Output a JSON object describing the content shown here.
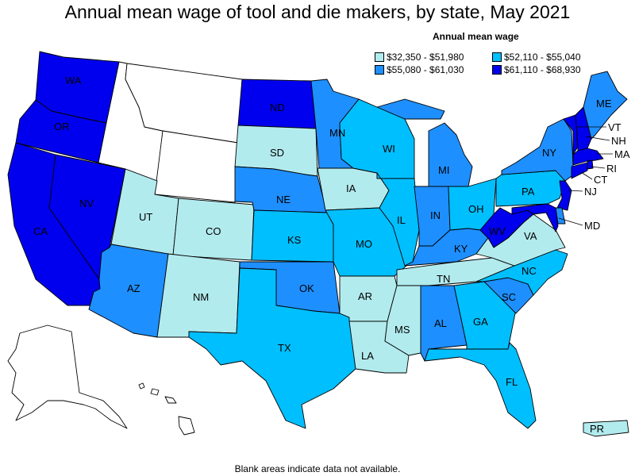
{
  "title": "Annual mean wage of tool and die makers, by state, May 2021",
  "legend": {
    "title": "Annual mean wage",
    "bins": [
      {
        "label": "$32,350 - $51,980",
        "color": "#b2ebee"
      },
      {
        "label": "$52,110 - $55,040",
        "color": "#00bfff"
      },
      {
        "label": "$55,080 - $61,030",
        "color": "#1e8fff"
      },
      {
        "label": "$61,110 - $68,930",
        "color": "#0000ee"
      }
    ]
  },
  "colors": {
    "no_data": "#ffffff",
    "border": "#000000"
  },
  "footnote": "Blank areas indicate data not available.",
  "states": {
    "WA": {
      "label": "WA",
      "bin": 3
    },
    "OR": {
      "label": "OR",
      "bin": 3
    },
    "CA": {
      "label": "CA",
      "bin": 3
    },
    "NV": {
      "label": "NV",
      "bin": 3
    },
    "ID": {
      "label": "",
      "bin": null
    },
    "MT": {
      "label": "",
      "bin": null
    },
    "WY": {
      "label": "",
      "bin": null
    },
    "UT": {
      "label": "UT",
      "bin": 0
    },
    "CO": {
      "label": "CO",
      "bin": 0
    },
    "AZ": {
      "label": "AZ",
      "bin": 2
    },
    "NM": {
      "label": "NM",
      "bin": 0
    },
    "ND": {
      "label": "ND",
      "bin": 3
    },
    "SD": {
      "label": "SD",
      "bin": 0
    },
    "NE": {
      "label": "NE",
      "bin": 2
    },
    "KS": {
      "label": "KS",
      "bin": 1
    },
    "OK": {
      "label": "OK",
      "bin": 2
    },
    "TX": {
      "label": "TX",
      "bin": 1
    },
    "MN": {
      "label": "MN",
      "bin": 2
    },
    "IA": {
      "label": "IA",
      "bin": 0
    },
    "MO": {
      "label": "MO",
      "bin": 1
    },
    "AR": {
      "label": "AR",
      "bin": 0
    },
    "LA": {
      "label": "LA",
      "bin": 0
    },
    "WI": {
      "label": "WI",
      "bin": 1
    },
    "IL": {
      "label": "IL",
      "bin": 1
    },
    "MI": {
      "label": "MI",
      "bin": 2
    },
    "IN": {
      "label": "IN",
      "bin": 2
    },
    "OH": {
      "label": "OH",
      "bin": 1
    },
    "KY": {
      "label": "KY",
      "bin": 2
    },
    "TN": {
      "label": "TN",
      "bin": 0
    },
    "MS": {
      "label": "MS",
      "bin": 0
    },
    "AL": {
      "label": "AL",
      "bin": 2
    },
    "GA": {
      "label": "GA",
      "bin": 1
    },
    "FL": {
      "label": "FL",
      "bin": 1
    },
    "SC": {
      "label": "SC",
      "bin": 2
    },
    "NC": {
      "label": "NC",
      "bin": 1
    },
    "VA": {
      "label": "VA",
      "bin": 0
    },
    "WV": {
      "label": "WV",
      "bin": 3
    },
    "PA": {
      "label": "PA",
      "bin": 1
    },
    "NY": {
      "label": "NY",
      "bin": 2
    },
    "ME": {
      "label": "ME",
      "bin": 2
    },
    "VT": {
      "label": "VT",
      "bin": 3
    },
    "NH": {
      "label": "NH",
      "bin": 3
    },
    "MA": {
      "label": "MA",
      "bin": 3
    },
    "RI": {
      "label": "RI",
      "bin": 3
    },
    "CT": {
      "label": "CT",
      "bin": 3
    },
    "NJ": {
      "label": "NJ",
      "bin": 3
    },
    "MD": {
      "label": "MD",
      "bin": 3
    },
    "DE": {
      "label": "",
      "bin": 2
    },
    "AK": {
      "label": "",
      "bin": null
    },
    "HI": {
      "label": "",
      "bin": null
    },
    "PR": {
      "label": "PR",
      "bin": 0
    }
  }
}
